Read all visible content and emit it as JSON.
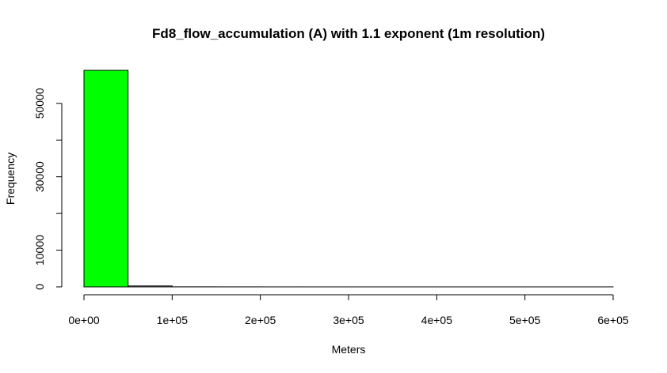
{
  "chart_data": {
    "type": "bar",
    "title": "Fd8_flow_accumulation (A) with 1.1 exponent (1m resolution)",
    "xlabel": "Meters",
    "ylabel": "Frequency",
    "bin_edges": [
      0,
      50000,
      100000,
      150000,
      200000,
      250000,
      300000,
      350000,
      400000,
      450000,
      500000,
      550000,
      600000
    ],
    "values": [
      59000,
      250,
      20,
      10,
      5,
      3,
      2,
      2,
      1,
      1,
      1,
      1
    ],
    "xlim": [
      0,
      600000
    ],
    "ylim": [
      0,
      59000
    ],
    "x_ticks": [
      0,
      100000,
      200000,
      300000,
      400000,
      500000,
      600000
    ],
    "x_tick_labels": [
      "0e+00",
      "1e+05",
      "2e+05",
      "3e+05",
      "4e+05",
      "5e+05",
      "6e+05"
    ],
    "y_ticks": [
      0,
      10000,
      20000,
      30000,
      40000,
      50000
    ],
    "y_tick_labels": [
      "0",
      "10000",
      "",
      "30000",
      "",
      "50000"
    ],
    "bar_color": "#00ff00",
    "grid": false,
    "legend": "none"
  }
}
